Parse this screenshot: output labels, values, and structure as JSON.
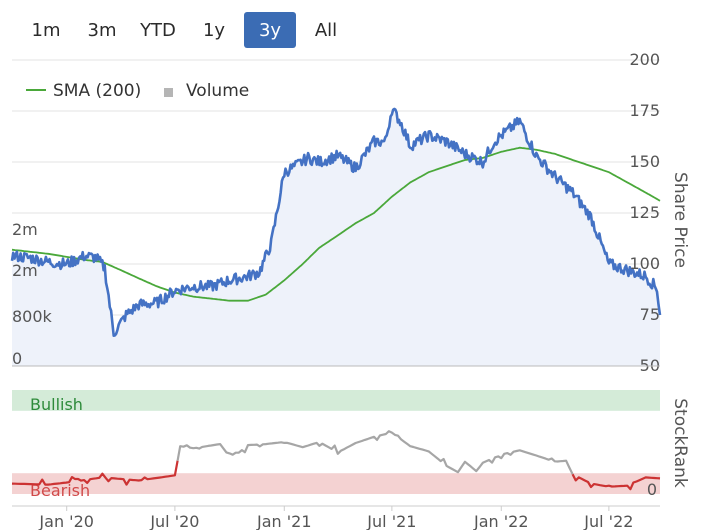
{
  "range_tabs": [
    {
      "label": "1m",
      "active": false
    },
    {
      "label": "3m",
      "active": false
    },
    {
      "label": "YTD",
      "active": false
    },
    {
      "label": "1y",
      "active": false
    },
    {
      "label": "3y",
      "active": true
    },
    {
      "label": "All",
      "active": false
    }
  ],
  "legend": {
    "sma_label": "SMA (200)",
    "volume_label": "Volume"
  },
  "chart_data": [
    {
      "type": "line",
      "title": "",
      "x_tick_labels": [
        "Jan '20",
        "Jul '20",
        "Jan '21",
        "Jul '21",
        "Jan '22",
        "Jul '22"
      ],
      "x_tick_dates": [
        "2020-01-01",
        "2020-07-01",
        "2021-01-01",
        "2021-07-01",
        "2022-01-01",
        "2022-07-01"
      ],
      "xlim": [
        "2019-10-01",
        "2022-09-25"
      ],
      "ylabel": "Share Price",
      "ylim": [
        50,
        200
      ],
      "y_ticks": [
        50,
        75,
        100,
        125,
        150,
        175,
        200
      ],
      "volume_ticks": [
        "0",
        "800k",
        "2m",
        "2m"
      ],
      "colors": {
        "price": "#4472c4",
        "sma": "#4aa83a",
        "volume": "#c4c4c4",
        "area": "#eef2fa"
      },
      "series": [
        {
          "name": "",
          "x": [
            "2019-10-01",
            "2019-11-01",
            "2019-12-01",
            "2020-01-01",
            "2020-02-01",
            "2020-02-20",
            "2020-03-05",
            "2020-03-20",
            "2020-04-10",
            "2020-05-01",
            "2020-06-01",
            "2020-07-01",
            "2020-08-01",
            "2020-09-01",
            "2020-10-01",
            "2020-11-01",
            "2020-11-20",
            "2020-12-10",
            "2021-01-01",
            "2021-01-20",
            "2021-02-10",
            "2021-03-01",
            "2021-04-01",
            "2021-05-01",
            "2021-06-01",
            "2021-06-20",
            "2021-07-01",
            "2021-07-15",
            "2021-08-01",
            "2021-09-01",
            "2021-10-01",
            "2021-11-01",
            "2021-12-01",
            "2021-12-20",
            "2022-01-01",
            "2022-02-01",
            "2022-03-01",
            "2022-04-01",
            "2022-05-01",
            "2022-06-01",
            "2022-07-01",
            "2022-08-01",
            "2022-09-01",
            "2022-09-20",
            "2022-09-25"
          ],
          "values": [
            104,
            103,
            101,
            100,
            104,
            103,
            98,
            66,
            75,
            80,
            81,
            87,
            89,
            89,
            92,
            94,
            96,
            110,
            145,
            148,
            152,
            150,
            153,
            147,
            160,
            160,
            176,
            170,
            158,
            163,
            160,
            154,
            150,
            160,
            163,
            170,
            153,
            143,
            135,
            123,
            100,
            97,
            94,
            88,
            75
          ]
        },
        {
          "name": "SMA (200)",
          "x": [
            "2019-10-01",
            "2019-12-01",
            "2020-02-01",
            "2020-03-01",
            "2020-04-01",
            "2020-05-01",
            "2020-06-01",
            "2020-07-01",
            "2020-08-01",
            "2020-09-01",
            "2020-10-01",
            "2020-11-01",
            "2020-12-01",
            "2021-01-01",
            "2021-02-01",
            "2021-03-01",
            "2021-04-01",
            "2021-05-01",
            "2021-06-01",
            "2021-07-01",
            "2021-08-01",
            "2021-09-01",
            "2021-10-01",
            "2021-11-01",
            "2021-12-01",
            "2022-01-01",
            "2022-02-01",
            "2022-03-01",
            "2022-04-01",
            "2022-05-01",
            "2022-06-01",
            "2022-07-01",
            "2022-08-01",
            "2022-09-01",
            "2022-09-25"
          ],
          "values": [
            107,
            105,
            102,
            101,
            97,
            93,
            89,
            86,
            84,
            83,
            82,
            82,
            85,
            92,
            100,
            108,
            114,
            120,
            125,
            133,
            140,
            145,
            148,
            151,
            152,
            155,
            157,
            156,
            154,
            151,
            148,
            145,
            140,
            135,
            131
          ]
        }
      ]
    },
    {
      "type": "line",
      "title": "",
      "ylabel": "StockRank",
      "ylim": [
        0,
        100
      ],
      "y_ticks": [
        "0"
      ],
      "bands": [
        {
          "label": "Bullish",
          "from": 80,
          "to": 100,
          "color": "#d4ebd8",
          "text_color": "#2e8b3a"
        },
        {
          "label": "Bearish",
          "from": 0,
          "to": 20,
          "color": "#f4d2d2",
          "text_color": "#d14a4a"
        }
      ],
      "threshold": 20,
      "colors": {
        "below": "#cc3333",
        "above": "#a6a6a6"
      },
      "series": [
        {
          "name": "",
          "x": [
            "2019-10-01",
            "2019-12-01",
            "2020-01-15",
            "2020-03-01",
            "2020-05-01",
            "2020-06-20",
            "2020-07-01",
            "2020-07-10",
            "2020-08-01",
            "2020-09-15",
            "2020-10-01",
            "2020-11-01",
            "2020-12-01",
            "2021-01-01",
            "2021-02-01",
            "2021-03-01",
            "2021-04-01",
            "2021-05-01",
            "2021-06-01",
            "2021-07-01",
            "2021-08-01",
            "2021-09-01",
            "2021-10-01",
            "2021-10-20",
            "2021-11-01",
            "2021-11-20",
            "2021-12-01",
            "2022-01-01",
            "2022-02-01",
            "2022-03-01",
            "2022-04-01",
            "2022-04-20",
            "2022-05-01",
            "2022-06-01",
            "2022-07-01",
            "2022-08-01",
            "2022-09-01",
            "2022-09-25"
          ],
          "values": [
            10,
            9,
            12,
            16,
            13,
            17,
            18,
            46,
            44,
            48,
            36,
            47,
            48,
            50,
            45,
            50,
            40,
            49,
            55,
            59,
            46,
            41,
            27,
            21,
            31,
            22,
            30,
            38,
            42,
            37,
            31,
            32,
            19,
            10,
            7,
            8,
            16,
            15
          ]
        }
      ]
    }
  ]
}
